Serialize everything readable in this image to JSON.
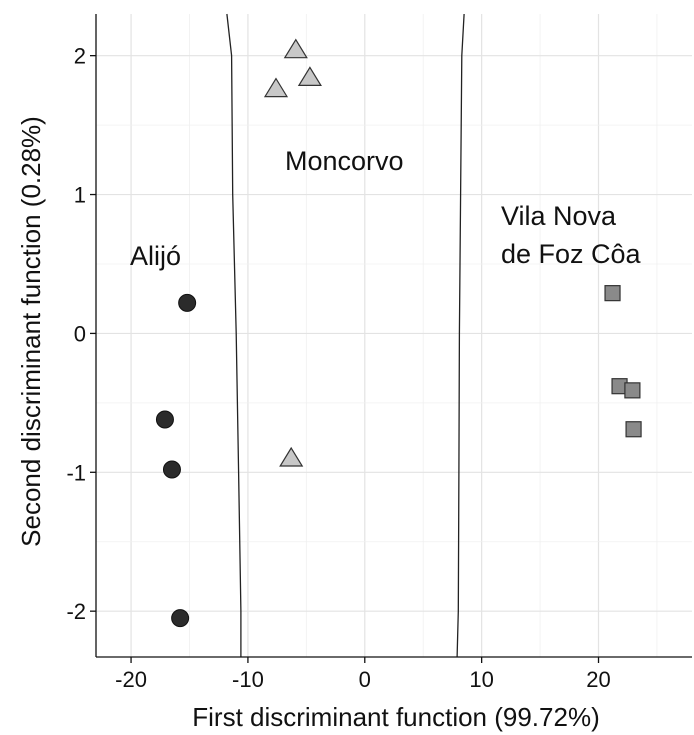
{
  "chart_data": {
    "type": "scatter",
    "title": "",
    "xlabel": "First discriminant function (99.72%)",
    "ylabel": "Second discriminant function (0.28%)",
    "xlim": [
      -23,
      28
    ],
    "ylim": [
      -2.33,
      2.3
    ],
    "x_ticks": [
      -20,
      -10,
      0,
      10,
      20
    ],
    "y_ticks": [
      -2,
      -1,
      0,
      1,
      2
    ],
    "x_tick_labels": [
      "-20",
      "-10",
      "0",
      "10",
      "20"
    ],
    "y_tick_labels": [
      "-2",
      "-1",
      "0",
      "1",
      "2"
    ],
    "grid": true,
    "legend": "none",
    "series": [
      {
        "marker": "circle",
        "color": "#2b2b2b",
        "points": [
          {
            "x": -15.2,
            "y": 0.22
          },
          {
            "x": -17.1,
            "y": -0.62
          },
          {
            "x": -16.5,
            "y": -0.98
          },
          {
            "x": -15.8,
            "y": -2.05
          }
        ]
      },
      {
        "marker": "triangle",
        "color": "#c8c8c8",
        "points": [
          {
            "x": -5.9,
            "y": 2.04
          },
          {
            "x": -4.7,
            "y": 1.84
          },
          {
            "x": -7.6,
            "y": 1.76
          },
          {
            "x": -6.3,
            "y": -0.9
          }
        ]
      },
      {
        "marker": "square",
        "color": "#8a8a8a",
        "points": [
          {
            "x": 21.2,
            "y": 0.29
          },
          {
            "x": 21.8,
            "y": -0.38
          },
          {
            "x": 22.9,
            "y": -0.41
          },
          {
            "x": 23.0,
            "y": -0.69
          }
        ]
      }
    ],
    "region_labels": [
      {
        "text": "Alijó",
        "lines": [
          "Alijó"
        ]
      },
      {
        "text": "Moncorvo",
        "lines": [
          "Moncorvo"
        ]
      },
      {
        "text": "Vila Nova de Foz Côa",
        "lines": [
          "Vila Nova",
          "de Foz Côa"
        ]
      }
    ],
    "boundaries": [
      {
        "points": [
          [
            -11.8,
            2.3
          ],
          [
            -11.4,
            2.0
          ],
          [
            -11.3,
            1.0
          ],
          [
            -11.0,
            0.0
          ],
          [
            -10.8,
            -1.0
          ],
          [
            -10.6,
            -2.0
          ],
          [
            -10.6,
            -2.33
          ]
        ]
      },
      {
        "points": [
          [
            8.5,
            2.3
          ],
          [
            8.3,
            2.0
          ],
          [
            8.2,
            1.0
          ],
          [
            8.1,
            0.0
          ],
          [
            8.05,
            -1.0
          ],
          [
            8.0,
            -2.0
          ],
          [
            7.9,
            -2.33
          ]
        ]
      }
    ]
  }
}
